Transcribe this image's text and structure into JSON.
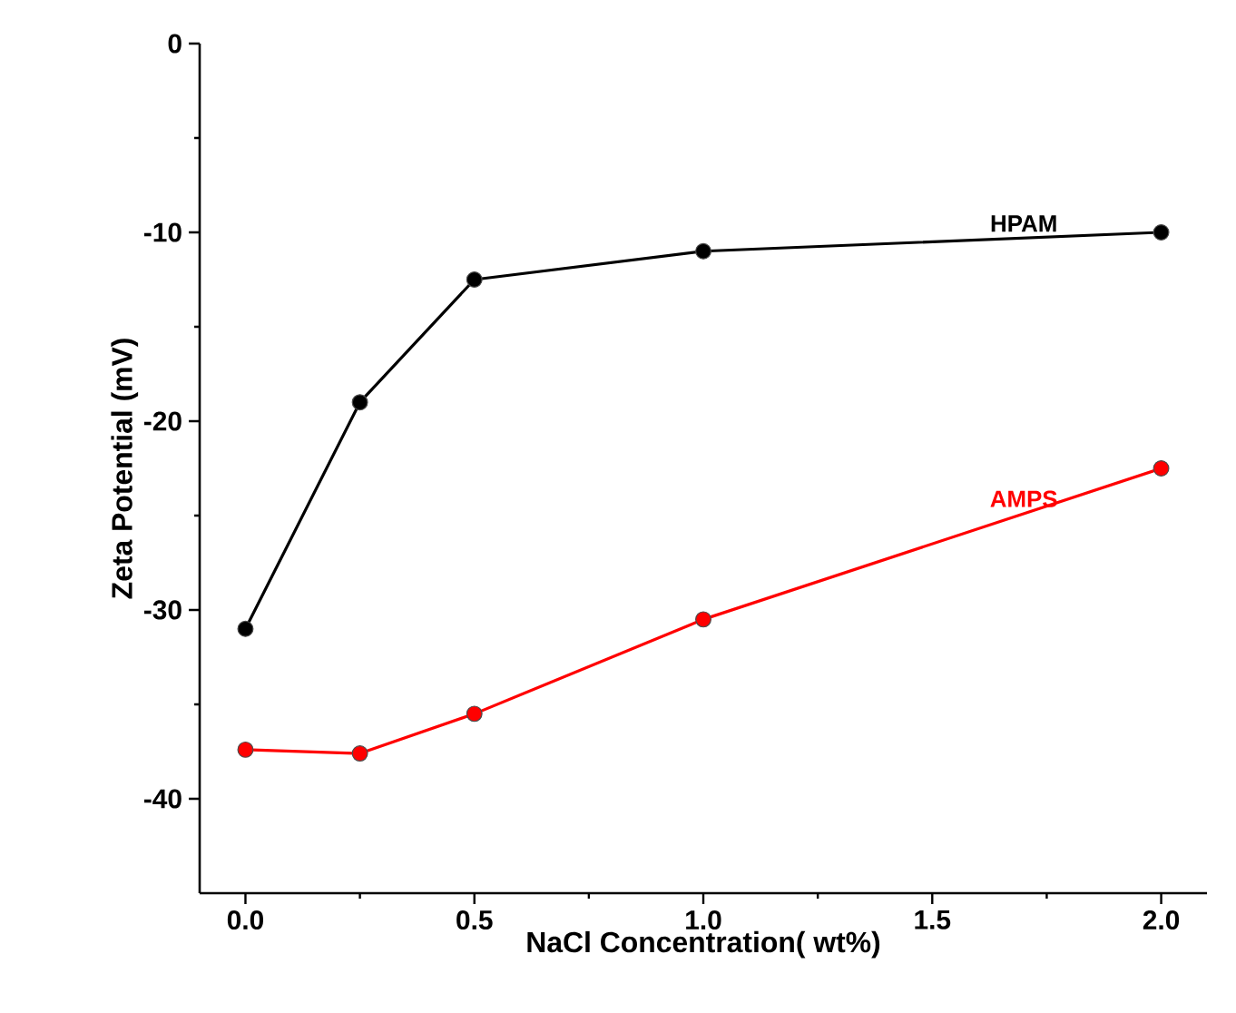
{
  "chart_data": {
    "type": "line",
    "xlabel": "NaCl Concentration( wt%)",
    "ylabel": "Zeta Potential (mV)",
    "x": [
      0,
      0.25,
      0.5,
      1,
      2
    ],
    "series": [
      {
        "name": "HPAM",
        "color": "#000000",
        "values": [
          -31,
          -19,
          -12.5,
          -11,
          -10
        ]
      },
      {
        "name": "AMPS",
        "color": "#ff0000",
        "values": [
          -37.4,
          -37.6,
          -35.5,
          -30.5,
          -22.5
        ]
      }
    ],
    "xlim": [
      -0.1,
      2.1
    ],
    "ylim": [
      -45,
      0
    ],
    "xticks": [
      {
        "value": 0,
        "label": "0.0"
      },
      {
        "value": 0.5,
        "label": "0.5"
      },
      {
        "value": 1,
        "label": "1.0"
      },
      {
        "value": 1.5,
        "label": "1.5"
      },
      {
        "value": 2,
        "label": "2.0"
      }
    ],
    "yticks": [
      -40,
      -30,
      -20,
      -10,
      0
    ],
    "marker": "circle",
    "line_style": "solid",
    "grid": false,
    "legend": false
  }
}
